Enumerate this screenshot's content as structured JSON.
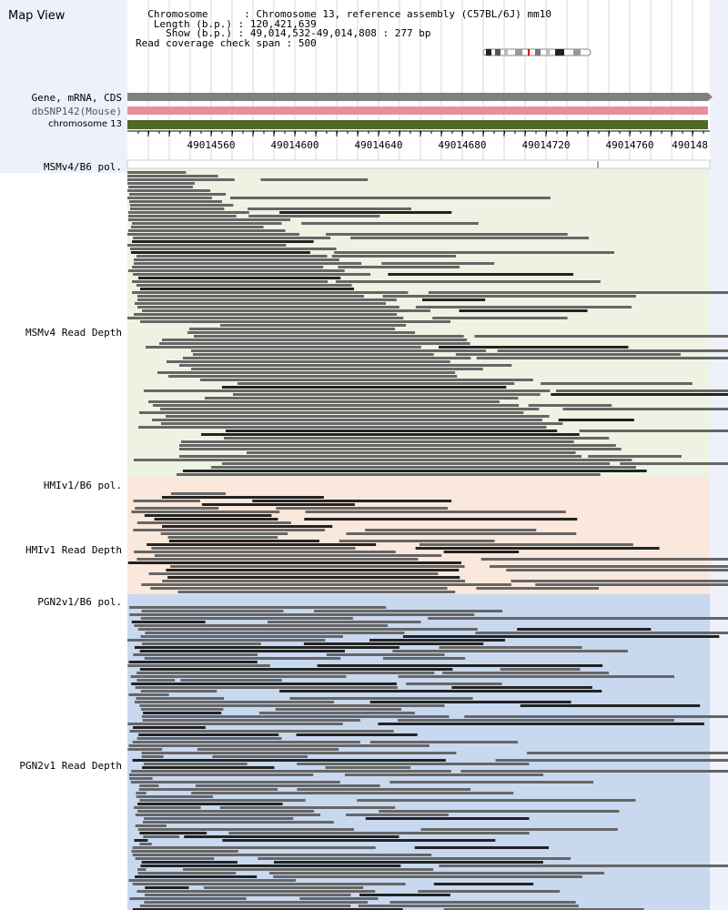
{
  "page": {
    "title": "Map View"
  },
  "info": {
    "chromosome_label": "Chromosome",
    "chromosome_value": "Chromosome 13, reference assembly (C57BL/6J) mm10",
    "length_label": "Length (b.p.)",
    "length_value": "120,421,639",
    "show_label": "Show (b.p.)",
    "show_value": "49,014,532-49,014,808 : 277 bp",
    "coverage_label": "Read coverage check span",
    "coverage_value": "500"
  },
  "tracks": {
    "gene": "Gene, mRNA, CDS",
    "snp": "dbSNP142(Mouse)",
    "chrom": "chromosome 13"
  },
  "ruler": {
    "ticks": [
      "49014560",
      "49014600",
      "49014640",
      "49014680",
      "49014720",
      "49014760",
      "490148"
    ]
  },
  "sections": {
    "msmv4_pol": "MSMv4/B6 pol.",
    "msmv4_depth": "MSMv4 Read Depth",
    "hmiv1_pol": "HMIv1/B6 pol.",
    "hmiv1_depth": "HMIv1 Read Depth",
    "pgn2v1_pol": "PGN2v1/B6 pol.",
    "pgn2v1_depth": "PGN2v1 Read Depth"
  },
  "colors": {
    "gene_track": "#808080",
    "snp_track": "#e8909a",
    "chrom_track": "#4e6a26",
    "msmv4_bg": "#edf2e3",
    "hmiv1_bg": "#fbe8dc",
    "pgn2v1_bg": "#c8d8ef",
    "read": "#666666",
    "read_dark": "#222222",
    "side_bg": "#eef0fb"
  }
}
